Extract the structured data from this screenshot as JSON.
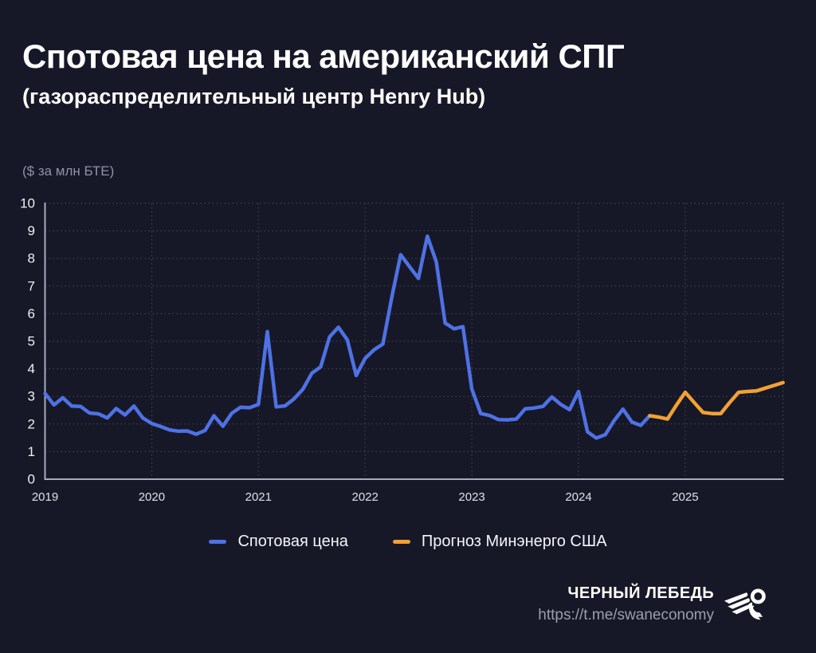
{
  "title": "Спотовая цена на американский СПГ",
  "subtitle": "(газораспределительный центр Henry Hub)",
  "chart_data": {
    "type": "line",
    "title": "Спотовая цена на американский СПГ (газораспределительный центр Henry Hub)",
    "unit_label": "($ за млн БТЕ)",
    "xlabel": "",
    "ylabel": "$ за млн БТЕ",
    "ylim": [
      0,
      10
    ],
    "y_ticks": [
      0,
      1,
      2,
      3,
      4,
      5,
      6,
      7,
      8,
      9,
      10
    ],
    "x_tick_labels": [
      "2019",
      "2020",
      "2021",
      "2022",
      "2023",
      "2024",
      "2025"
    ],
    "x_unit": "month",
    "x_range": "2019-01 .. 2025-12",
    "grid": "dotted",
    "legend_position": "bottom",
    "series": [
      {
        "name": "Спотовая цена",
        "color": "#4e71e5",
        "start": "2019-01",
        "start_month_offset": 0,
        "values": [
          3.11,
          2.69,
          2.95,
          2.65,
          2.64,
          2.4,
          2.37,
          2.22,
          2.56,
          2.33,
          2.65,
          2.22,
          2.02,
          1.91,
          1.79,
          1.74,
          1.75,
          1.63,
          1.77,
          2.3,
          1.92,
          2.39,
          2.61,
          2.59,
          2.71,
          5.35,
          2.62,
          2.66,
          2.91,
          3.26,
          3.84,
          4.07,
          5.16,
          5.51,
          5.05,
          3.76,
          4.38,
          4.69,
          4.9,
          6.6,
          8.14,
          7.7,
          7.28,
          8.81,
          7.88,
          5.66,
          5.45,
          5.53,
          3.27,
          2.38,
          2.31,
          2.16,
          2.15,
          2.18,
          2.55,
          2.58,
          2.64,
          2.98,
          2.71,
          2.52,
          3.18,
          1.72,
          1.49,
          1.61,
          2.12,
          2.54,
          2.07,
          1.95,
          2.3
        ]
      },
      {
        "name": "Прогноз Минэнерго США",
        "color": "#f2a134",
        "start": "2024-09",
        "start_month_offset": 68,
        "values": [
          2.3,
          2.25,
          2.18,
          2.68,
          3.15,
          2.78,
          2.42,
          2.38,
          2.38,
          2.78,
          3.15,
          3.18,
          3.2,
          3.3,
          3.4,
          3.5
        ]
      }
    ]
  },
  "legend": {
    "items": [
      {
        "label": "Спотовая цена",
        "color": "#4e71e5"
      },
      {
        "label": "Прогноз Минэнерго США",
        "color": "#f2a134"
      }
    ]
  },
  "footer": {
    "brand": "ЧЕРНЫЙ ЛЕБЕДЬ",
    "url": "https://t.me/swaneconomy",
    "logo": "swan-logo"
  },
  "colors": {
    "background": "#171827",
    "title": "#ffffff",
    "muted": "#8f92a6",
    "grid": "#45475a",
    "axis": "#a7abbd",
    "tick": "#edeff6",
    "spot_line": "#4e71e5",
    "forecast_line": "#f2a134"
  }
}
